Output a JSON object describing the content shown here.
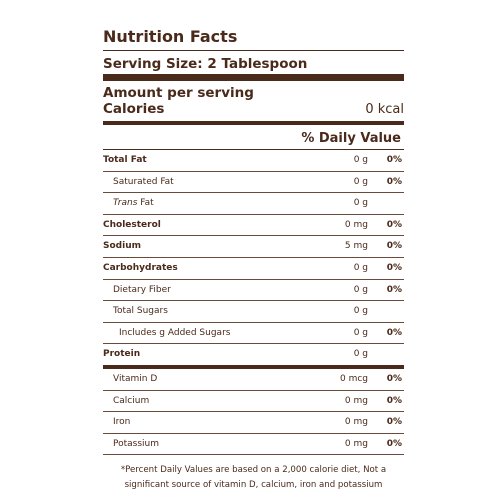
{
  "title": "Nutrition Facts",
  "serving_size": "Serving Size: 2 Tablespoon",
  "amount_per_serving": "Amount per serving",
  "calories": {
    "label": "Calories",
    "value": "0 kcal"
  },
  "daily_value_header": "% Daily Value",
  "nutrients": [
    {
      "name_prefix": "",
      "name": "Total Fat",
      "amount": "0 g",
      "percent": "0%"
    },
    {
      "name_prefix": "",
      "name": "Saturated Fat",
      "amount": "0 g",
      "percent": "0%"
    },
    {
      "name_prefix": "Trans",
      "name": " Fat",
      "amount": "0 g",
      "percent": ""
    },
    {
      "name_prefix": "",
      "name": "Cholesterol",
      "amount": "0 mg",
      "percent": "0%"
    },
    {
      "name_prefix": "",
      "name": "Sodium",
      "amount": "5 mg",
      "percent": "0%"
    },
    {
      "name_prefix": "",
      "name": "Carbohydrates",
      "amount": "0 g",
      "percent": "0%"
    },
    {
      "name_prefix": "",
      "name": "Dietary Fiber",
      "amount": "0 g",
      "percent": "0%"
    },
    {
      "name_prefix": "",
      "name": "Total Sugars",
      "amount": "0 g",
      "percent": ""
    },
    {
      "name_prefix": "",
      "name": "Includes g Added Sugars",
      "amount": "0 g",
      "percent": "0%"
    },
    {
      "name_prefix": "",
      "name": "Protein",
      "amount": "0 g",
      "percent": ""
    },
    {
      "name_prefix": "",
      "name": "Vitamin D",
      "amount": "0 mcg",
      "percent": "0%"
    },
    {
      "name_prefix": "",
      "name": "Calcium",
      "amount": "0 mg",
      "percent": "0%"
    },
    {
      "name_prefix": "",
      "name": "Iron",
      "amount": "0 mg",
      "percent": "0%"
    },
    {
      "name_prefix": "",
      "name": "Potassium",
      "amount": "0 mg",
      "percent": "0%"
    }
  ],
  "footnote": "*Percent Daily Values are based on a 2,000 calorie diet, Not a significant source of vitamin D, calcium, iron and potassium",
  "colors": {
    "text": "#4a2a1b",
    "rule": "#4a2a1b"
  }
}
